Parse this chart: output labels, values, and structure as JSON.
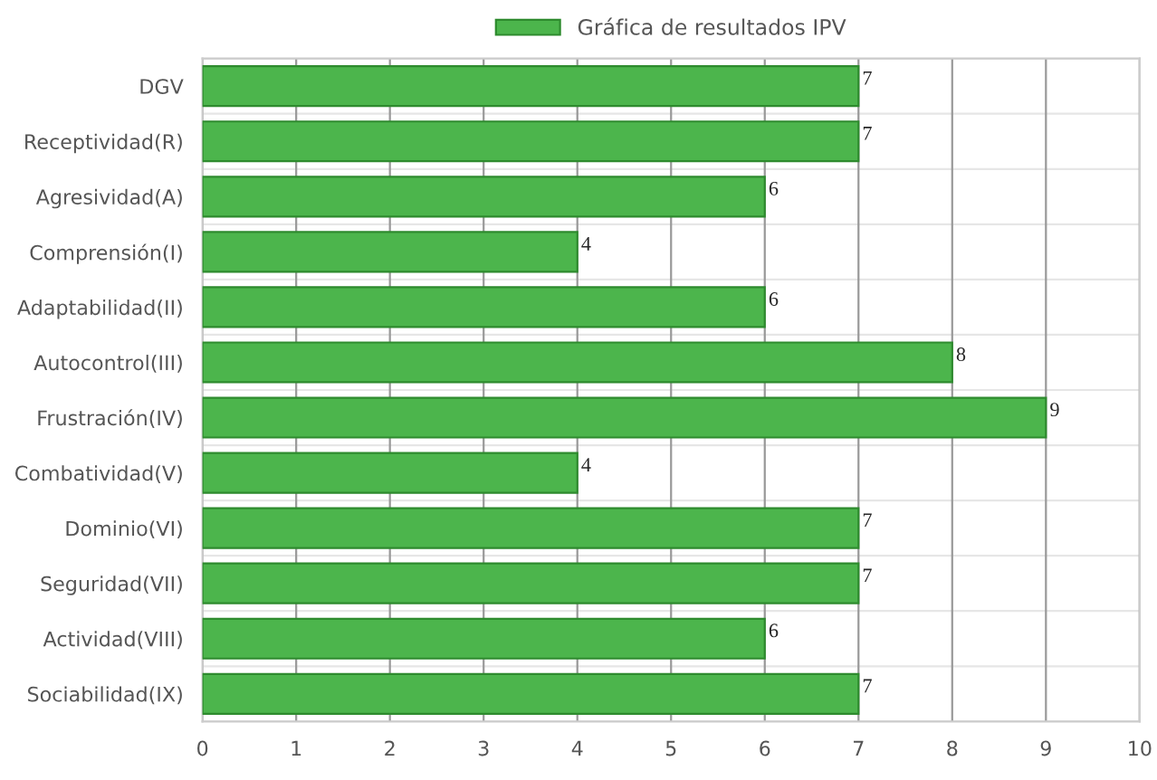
{
  "chart_data": {
    "type": "bar",
    "orientation": "horizontal",
    "categories": [
      "DGV",
      "Receptividad(R)",
      "Agresividad(A)",
      "Comprensión(I)",
      "Adaptabilidad(II)",
      "Autocontrol(III)",
      "Frustración(IV)",
      "Combatividad(V)",
      "Dominio(VI)",
      "Seguridad(VII)",
      "Actividad(VIII)",
      "Sociabilidad(IX)"
    ],
    "series": [
      {
        "name": "Gráfica de resultados IPV",
        "color": "#4cb54c",
        "values": [
          7,
          7,
          6,
          4,
          6,
          8,
          9,
          4,
          7,
          7,
          6,
          7
        ]
      }
    ],
    "xlim": [
      0,
      10
    ],
    "xticks": [
      0,
      1,
      2,
      3,
      4,
      5,
      6,
      7,
      8,
      9,
      10
    ],
    "grid": true,
    "legend": "top",
    "data_labels": true
  }
}
